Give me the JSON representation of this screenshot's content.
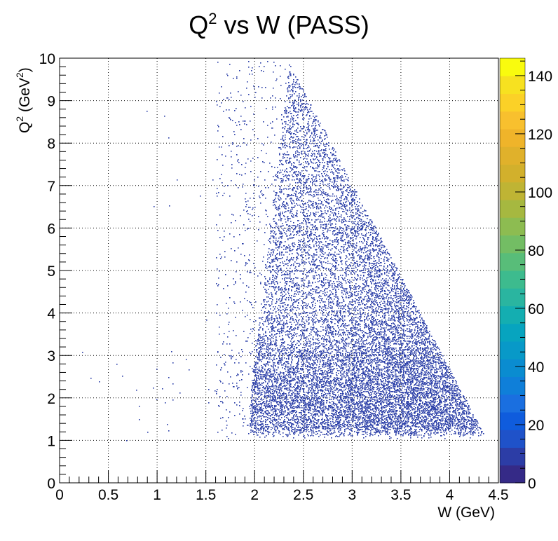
{
  "chart_data": {
    "type": "heatmap",
    "title": "Q2 vs W (PASS)",
    "title_main": "Q",
    "title_sup": "2",
    "title_rest": " vs W (PASS)",
    "xlabel": "W (GeV)",
    "ylabel_prefix": "Q",
    "ylabel_sup": "2",
    "ylabel_mid": " (GeV",
    "ylabel_sup2": "2",
    "ylabel_end": ")",
    "xlim": [
      0,
      4.5
    ],
    "ylim": [
      0,
      10
    ],
    "x_ticks": [
      0,
      0.5,
      1,
      1.5,
      2,
      2.5,
      3,
      3.5,
      4,
      4.5
    ],
    "x_tick_labels": [
      "0",
      "0.5",
      "1",
      "1.5",
      "2",
      "2.5",
      "3",
      "3.5",
      "4",
      "4.5"
    ],
    "y_ticks": [
      0,
      1,
      2,
      3,
      4,
      5,
      6,
      7,
      8,
      9,
      10
    ],
    "y_tick_labels": [
      "0",
      "1",
      "2",
      "3",
      "4",
      "5",
      "6",
      "7",
      "8",
      "9",
      "10"
    ],
    "grid": true,
    "colorbar": {
      "zlim": [
        0,
        146
      ],
      "ticks": [
        0,
        20,
        40,
        60,
        80,
        100,
        120,
        140
      ],
      "tick_labels": [
        "0",
        "20",
        "40",
        "60",
        "80",
        "100",
        "120",
        "140"
      ],
      "palette": [
        "#352a87",
        "#2c3da6",
        "#1f52c9",
        "#0f5cdd",
        "#1a6fe0",
        "#0f7fd9",
        "#0a8cd0",
        "#0899c8",
        "#07a4bf",
        "#14aeb1",
        "#2ab5a0",
        "#3dbb8e",
        "#58bd79",
        "#73bd64",
        "#8dbc51",
        "#a6b840",
        "#bfb434",
        "#d2b02c",
        "#e0b12b",
        "#efb42a",
        "#f8c02e",
        "#fbd127",
        "#f7e120",
        "#f9fb0e"
      ]
    },
    "distribution": {
      "description_values": "dense region bounded approx by W from 2.0 to 4.4 GeV, Q2 from 1.1 to 9.8",
      "bulk_color": "#2b3fa8",
      "lower_edge_q2": 1.3,
      "apex_w": 2.35,
      "apex_q2": 9.9,
      "right_edge_w_at_q2_1": 4.4
    }
  }
}
